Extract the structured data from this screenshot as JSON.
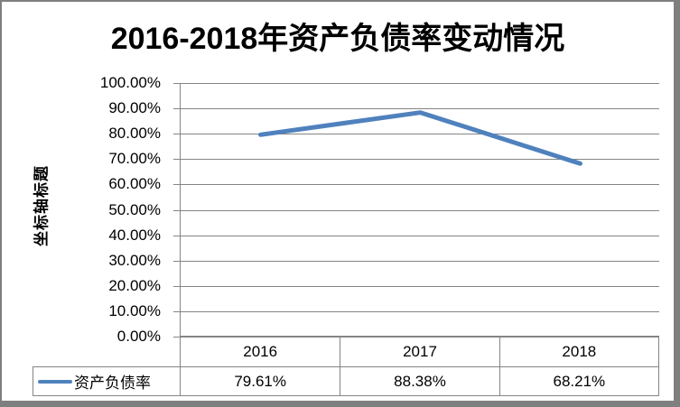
{
  "colors": {
    "series": "#4F81BD",
    "gridline": "#848484",
    "frame_border": "#7F7F7F",
    "text": "#000000",
    "background": "#FFFFFF"
  },
  "chart_data": {
    "type": "line",
    "title": "2016-2018年资产负债率变动情况",
    "y_axis_title": "坐标轴标题",
    "categories": [
      "2016",
      "2017",
      "2018"
    ],
    "series": [
      {
        "name": "资产负债率",
        "color": "#4F81BD",
        "values": [
          79.61,
          88.38,
          68.21
        ],
        "value_labels": [
          "79.61%",
          "88.38%",
          "68.21%"
        ]
      }
    ],
    "y_ticks": [
      "100.00%",
      "90.00%",
      "80.00%",
      "70.00%",
      "60.00%",
      "50.00%",
      "40.00%",
      "30.00%",
      "20.00%",
      "10.00%",
      "0.00%"
    ],
    "ylim": [
      0,
      100
    ],
    "grid": true,
    "legend_position": "bottom-left-table",
    "data_table_shown": true
  }
}
